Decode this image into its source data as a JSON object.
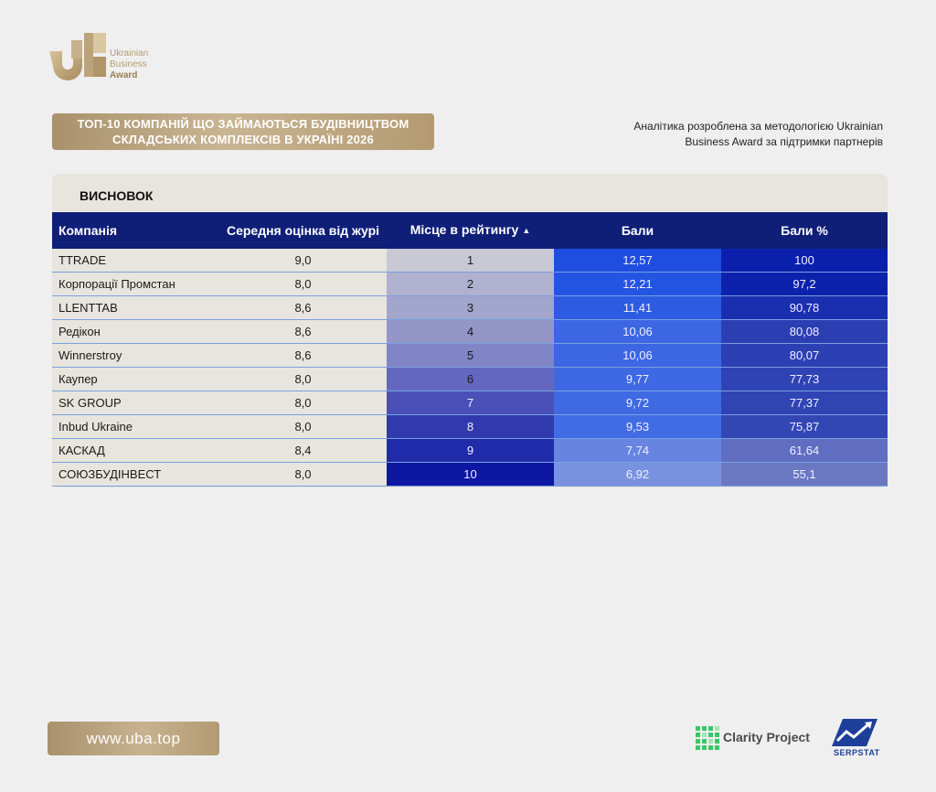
{
  "brand": {
    "line1": "Ukrainian",
    "line2": "Business",
    "line3": "Award",
    "gold": "#b99b72"
  },
  "banner": {
    "line1": "ТОП-10 КОМПАНІЙ ЩО ЗАЙМАЮТЬСЯ БУДІВНИЦТВОМ",
    "line2": "СКЛАДСЬКИХ КОМПЛЕКСІВ В УКРАЇНІ 2026"
  },
  "note": {
    "line1": "Аналітика розроблена за методологією Ukrainian",
    "line2": "Business Award за підтримки партнерів"
  },
  "panel": {
    "title": "ВИСНОВОК"
  },
  "table": {
    "headers": {
      "company": "Компанія",
      "jury": "Середня оцінка від журі",
      "rank": "Місце в рейтингу",
      "score": "Бали",
      "percent": "Бали %"
    },
    "sort_icon": "sort-asc-icon",
    "header_color": "#0f1f78",
    "rows": [
      {
        "company": "TTRADE",
        "jury": "9,0",
        "rank": "1",
        "score": "12,57",
        "percent": "100"
      },
      {
        "company": "Корпорації Промстан",
        "jury": "8,0",
        "rank": "2",
        "score": "12,21",
        "percent": "97,2"
      },
      {
        "company": "LLENTTAB",
        "jury": "8,6",
        "rank": "3",
        "score": "11,41",
        "percent": "90,78"
      },
      {
        "company": "Редікон",
        "jury": "8,6",
        "rank": "4",
        "score": "10,06",
        "percent": "80,08"
      },
      {
        "company": "Winnerstroy",
        "jury": "8,6",
        "rank": "5",
        "score": "10,06",
        "percent": "80,07"
      },
      {
        "company": "Каупер",
        "jury": "8,0",
        "rank": "6",
        "score": "9,77",
        "percent": "77,73"
      },
      {
        "company": "SK GROUP",
        "jury": "8,0",
        "rank": "7",
        "score": "9,72",
        "percent": "77,37"
      },
      {
        "company": "Inbud Ukraine",
        "jury": "8,0",
        "rank": "8",
        "score": "9,53",
        "percent": "75,87"
      },
      {
        "company": "КАСКАД",
        "jury": "8,4",
        "rank": "9",
        "score": "7,74",
        "percent": "61,64"
      },
      {
        "company": "СОЮЗБУДІНВЕСТ",
        "jury": "8,0",
        "rank": "10",
        "score": "6,92",
        "percent": "55,1"
      }
    ],
    "rank_colors": [
      "#c9c9d5",
      "#b0b1ce",
      "#a2a5cc",
      "#9396c7",
      "#8085c5",
      "#6367bf",
      "#4a50b7",
      "#303aae",
      "#1f2ba9",
      "#0d17a1"
    ],
    "score_colors": [
      "#1e4de0",
      "#2454e2",
      "#2d5ce3",
      "#3c66e3",
      "#3c66e3",
      "#3f69e4",
      "#406ae4",
      "#426ce5",
      "#6784e0",
      "#7992e0"
    ],
    "percent_colors": [
      "#0b1fad",
      "#0d22ac",
      "#1a2eb0",
      "#2c3fb2",
      "#2d40b3",
      "#2f43b4",
      "#3044b4",
      "#3347b4",
      "#5f6ec0",
      "#6a78c2"
    ]
  },
  "footer": {
    "site": "www.uba.top",
    "partner1": "Clarity Project",
    "partner2": "SERPSTAT"
  }
}
